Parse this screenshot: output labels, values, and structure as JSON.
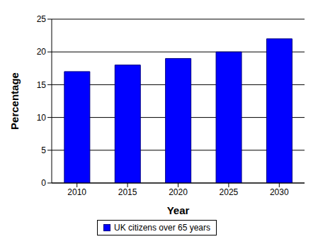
{
  "chart_data": {
    "type": "bar",
    "categories": [
      "2010",
      "2015",
      "2020",
      "2025",
      "2030"
    ],
    "series": [
      {
        "name": "UK citizens over 65 years",
        "color": "#0000ff",
        "values": [
          17,
          18,
          19,
          20,
          22
        ]
      }
    ],
    "x_label": "Year",
    "y_label": "Percentage",
    "ylim": [
      0,
      25
    ],
    "yticks": [
      0,
      5,
      10,
      15,
      20,
      25
    ],
    "grid": true,
    "legend": "bottom"
  }
}
